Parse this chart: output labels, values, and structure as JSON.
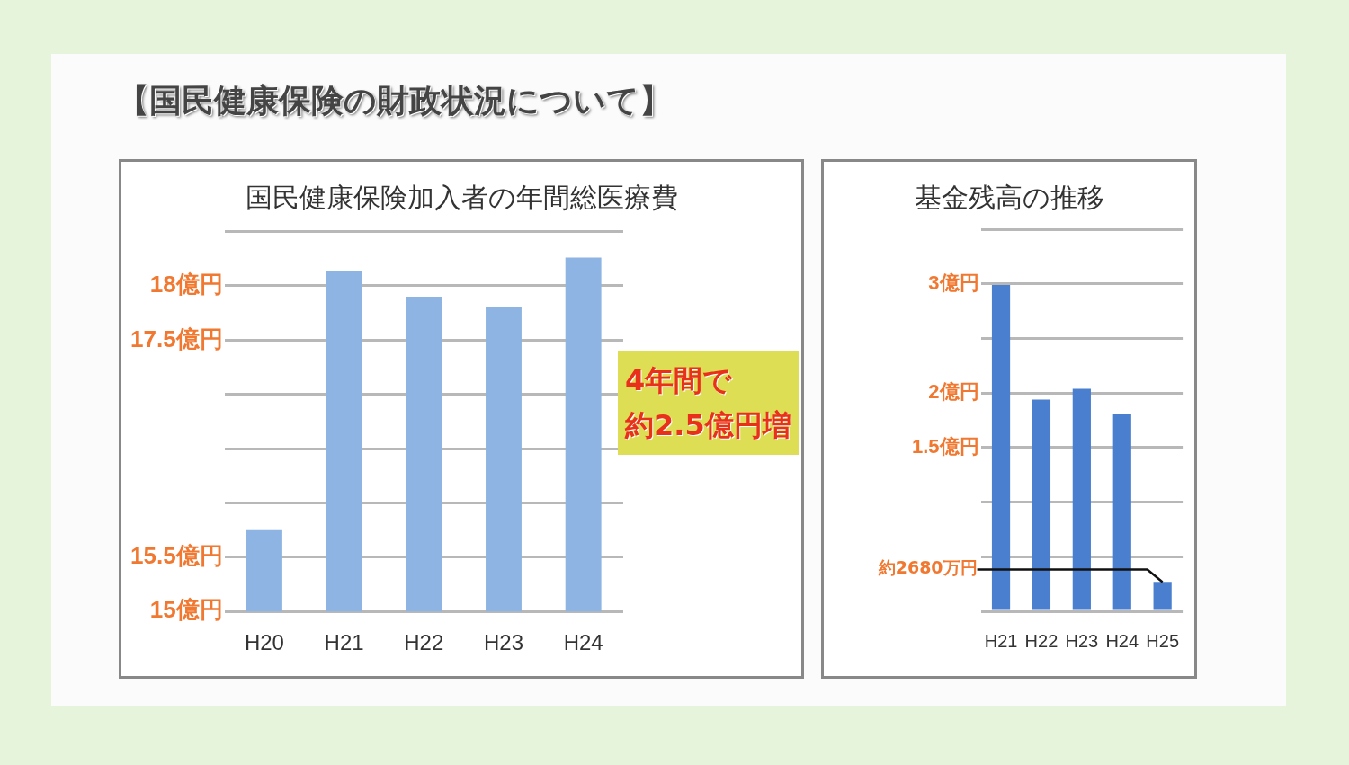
{
  "chart_data": [
    {
      "type": "bar",
      "title": "【国民健康保険の財政状況について】",
      "subtitle": "国民健康保険加入者の年間総医療費",
      "categories": [
        "H20",
        "H21",
        "H22",
        "H23",
        "H24"
      ],
      "values": [
        15.75,
        18.14,
        17.9,
        17.8,
        18.26
      ],
      "color": "#8db4e2",
      "ylim": [
        15,
        18.5
      ],
      "yticks": [
        {
          "value": 15,
          "label": "15億円"
        },
        {
          "value": 15.5,
          "label": "15.5億円"
        },
        {
          "value": 16,
          "label": null
        },
        {
          "value": 16.5,
          "label": null
        },
        {
          "value": 17,
          "label": null
        },
        {
          "value": 17.5,
          "label": "17.5億円"
        },
        {
          "value": 18,
          "label": "18億円"
        },
        {
          "value": 18.5,
          "label": null
        }
      ],
      "grid": "y",
      "annotations": [
        "4年間で",
        "約2.5億円増"
      ]
    },
    {
      "type": "bar",
      "title": "基金残高の推移",
      "categories": [
        "H21",
        "H22",
        "H23",
        "H24",
        "H25"
      ],
      "values": [
        2.99,
        1.94,
        2.04,
        1.81,
        0.27
      ],
      "color": "#4a7fd0",
      "ylim": [
        0,
        3.5
      ],
      "yticks": [
        {
          "value": 0,
          "label": null
        },
        {
          "value": 0.5,
          "label": null
        },
        {
          "value": 1,
          "label": null
        },
        {
          "value": 1.5,
          "label": "1.5億円"
        },
        {
          "value": 2,
          "label": "2億円"
        },
        {
          "value": 2.5,
          "label": null
        },
        {
          "value": 3,
          "label": "3億円"
        },
        {
          "value": 3.5,
          "label": null
        }
      ],
      "grid": "y",
      "annotations": [
        {
          "text": "約2680万円",
          "x": "H25",
          "y": 0.268
        }
      ]
    }
  ]
}
